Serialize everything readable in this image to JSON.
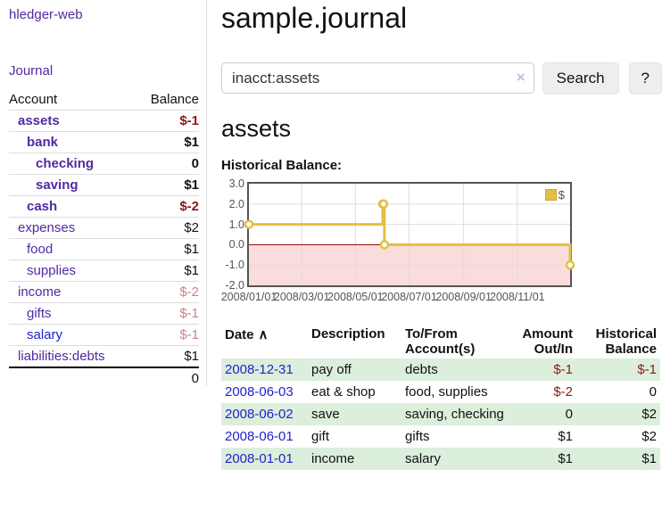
{
  "colors": {
    "link_purple": "#5229a3",
    "link_blue": "#2222cc",
    "negative_strong": "#8e1818",
    "negative_soft": "#c98585",
    "stripe_green": "#dceedc",
    "button_bg": "#eeeeee",
    "divider": "#dddddd"
  },
  "app": {
    "title": "hledger-web"
  },
  "sidebar": {
    "journal_label": "Journal",
    "accounts": {
      "header_account": "Account",
      "header_balance": "Balance",
      "rows": [
        {
          "name": "assets",
          "balance": "$-1"
        },
        {
          "name": "bank",
          "balance": "$1"
        },
        {
          "name": "checking",
          "balance": "0"
        },
        {
          "name": "saving",
          "balance": "$1"
        },
        {
          "name": "cash",
          "balance": "$-2"
        },
        {
          "name": "expenses",
          "balance": "$2"
        },
        {
          "name": "food",
          "balance": "$1"
        },
        {
          "name": "supplies",
          "balance": "$1"
        },
        {
          "name": "income",
          "balance": "$-2"
        },
        {
          "name": "gifts",
          "balance": "$-1"
        },
        {
          "name": "salary",
          "balance": "$-1"
        },
        {
          "name": "liabilities:debts",
          "balance": "$1"
        }
      ],
      "total_balance": "0"
    }
  },
  "main": {
    "title": "sample.journal",
    "search": {
      "value": "inacct:assets",
      "clear_icon": "×",
      "button_label": "Search",
      "help_label": "?"
    },
    "account_heading": "assets",
    "chart_title": "Historical Balance:"
  },
  "chart_data": {
    "type": "line",
    "step": true,
    "title": "Historical Balance:",
    "legend_label": "$",
    "legend_position": "top-right",
    "grid": true,
    "x_domain": [
      "2008-01-01",
      "2008-12-31"
    ],
    "y_domain": [
      -2,
      3
    ],
    "y_ticks": [
      {
        "value": 3,
        "label": "3.0"
      },
      {
        "value": 2,
        "label": "2.0"
      },
      {
        "value": 1,
        "label": "1.0"
      },
      {
        "value": 0,
        "label": "0.0"
      },
      {
        "value": -1,
        "label": "-1.0"
      },
      {
        "value": -2,
        "label": "-2.0"
      }
    ],
    "x_ticks": [
      {
        "date": "2008-01-01",
        "label": "2008/01/01"
      },
      {
        "date": "2008-03-01",
        "label": "2008/03/01"
      },
      {
        "date": "2008-05-01",
        "label": "2008/05/01"
      },
      {
        "date": "2008-07-01",
        "label": "2008/07/01"
      },
      {
        "date": "2008-09-01",
        "label": "2008/09/01"
      },
      {
        "date": "2008-11-01",
        "label": "2008/11/01"
      }
    ],
    "series": [
      {
        "name": "$",
        "points": [
          [
            "2008-01-01",
            1
          ],
          [
            "2008-06-01",
            2
          ],
          [
            "2008-06-02",
            2
          ],
          [
            "2008-06-03",
            0
          ],
          [
            "2008-12-31",
            -1
          ]
        ]
      }
    ],
    "colors": {
      "line": "#e4bf45",
      "marker_fill": "#ffffff",
      "below_zero_fill": "#fbdcdc",
      "zero_line": "#8f0000",
      "grid": "#dddddd",
      "border": "#545454"
    }
  },
  "register": {
    "headers": {
      "date": "Date",
      "sort_indicator": "∧",
      "description": "Description",
      "accounts": "To/From Account(s)",
      "amount": "Amount Out/In",
      "balance": "Historical Balance"
    },
    "rows": [
      {
        "date": "2008-12-31",
        "description": "pay off",
        "accounts": "debts",
        "amount": "$-1",
        "balance": "$-1"
      },
      {
        "date": "2008-06-03",
        "description": "eat & shop",
        "accounts": "food, supplies",
        "amount": "$-2",
        "balance": "0"
      },
      {
        "date": "2008-06-02",
        "description": "save",
        "accounts": "saving, checking",
        "amount": "0",
        "balance": "$2"
      },
      {
        "date": "2008-06-01",
        "description": "gift",
        "accounts": "gifts",
        "amount": "$1",
        "balance": "$2"
      },
      {
        "date": "2008-01-01",
        "description": "income",
        "accounts": "salary",
        "amount": "$1",
        "balance": "$1"
      }
    ]
  }
}
